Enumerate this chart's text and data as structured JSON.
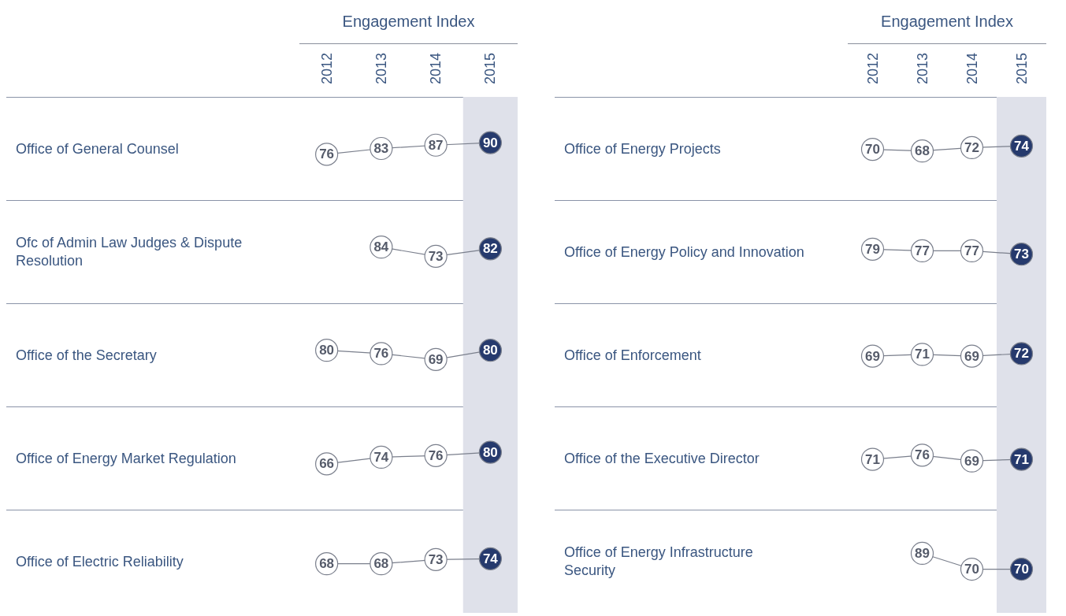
{
  "chart_data": [
    {
      "type": "line",
      "ylabel": "Office of General Counsel",
      "xlabel": "Engagement Index",
      "categories": [
        "2012",
        "2013",
        "2014",
        "2015"
      ],
      "tick_labels": "x",
      "data_labels": true,
      "marker": "circle",
      "bands": [
        {
          "axis": "x",
          "from": "2015",
          "to": "2015",
          "color": "#dfe1ea"
        }
      ],
      "series": [
        {
          "color": "#7a7f8c",
          "colors": [
            "#ffffff",
            "#ffffff",
            "#ffffff",
            "#263a6d"
          ],
          "values": [
            76,
            83,
            87,
            90
          ]
        }
      ]
    },
    {
      "type": "line",
      "ylabel": "Ofc of Admin Law Judges & Dispute Resolution",
      "categories": [
        "2012",
        "2013",
        "2014",
        "2015"
      ],
      "tick_labels": false,
      "data_labels": true,
      "marker": "circle",
      "bands": [
        {
          "axis": "x",
          "from": "2015",
          "to": "2015",
          "color": "#dfe1ea"
        }
      ],
      "series": [
        {
          "color": "#7a7f8c",
          "colors": [
            null,
            "#ffffff",
            "#ffffff",
            "#263a6d"
          ],
          "values": [
            null,
            84,
            73,
            82
          ]
        }
      ]
    },
    {
      "type": "line",
      "ylabel": "Office of the Secretary",
      "categories": [
        "2012",
        "2013",
        "2014",
        "2015"
      ],
      "tick_labels": false,
      "data_labels": true,
      "marker": "circle",
      "bands": [
        {
          "axis": "x",
          "from": "2015",
          "to": "2015",
          "color": "#dfe1ea"
        }
      ],
      "series": [
        {
          "color": "#7a7f8c",
          "colors": [
            "#ffffff",
            "#ffffff",
            "#ffffff",
            "#263a6d"
          ],
          "values": [
            80,
            76,
            69,
            80
          ]
        }
      ]
    },
    {
      "type": "line",
      "ylabel": "Office of Energy Market Regulation",
      "categories": [
        "2012",
        "2013",
        "2014",
        "2015"
      ],
      "tick_labels": false,
      "data_labels": true,
      "marker": "circle",
      "bands": [
        {
          "axis": "x",
          "from": "2015",
          "to": "2015",
          "color": "#dfe1ea"
        }
      ],
      "series": [
        {
          "color": "#7a7f8c",
          "colors": [
            "#ffffff",
            "#ffffff",
            "#ffffff",
            "#263a6d"
          ],
          "values": [
            66,
            74,
            76,
            80
          ]
        }
      ]
    },
    {
      "type": "line",
      "ylabel": "Office of Electric Reliability",
      "categories": [
        "2012",
        "2013",
        "2014",
        "2015"
      ],
      "tick_labels": false,
      "data_labels": true,
      "marker": "circle",
      "bands": [
        {
          "axis": "x",
          "from": "2015",
          "to": "2015",
          "color": "#dfe1ea"
        }
      ],
      "series": [
        {
          "color": "#7a7f8c",
          "colors": [
            "#ffffff",
            "#ffffff",
            "#ffffff",
            "#263a6d"
          ],
          "values": [
            68,
            68,
            73,
            74
          ]
        }
      ]
    },
    {
      "type": "line",
      "ylabel": "Office of Energy Projects",
      "xlabel": "Engagement Index",
      "categories": [
        "2012",
        "2013",
        "2014",
        "2015"
      ],
      "tick_labels": "x",
      "data_labels": true,
      "marker": "circle",
      "bands": [
        {
          "axis": "x",
          "from": "2015",
          "to": "2015",
          "color": "#dfe1ea"
        }
      ],
      "series": [
        {
          "color": "#7a7f8c",
          "colors": [
            "#ffffff",
            "#ffffff",
            "#ffffff",
            "#263a6d"
          ],
          "values": [
            70,
            68,
            72,
            74
          ]
        }
      ]
    },
    {
      "type": "line",
      "ylabel": "Office of Energy Policy and Innovation",
      "categories": [
        "2012",
        "2013",
        "2014",
        "2015"
      ],
      "tick_labels": false,
      "data_labels": true,
      "marker": "circle",
      "bands": [
        {
          "axis": "x",
          "from": "2015",
          "to": "2015",
          "color": "#dfe1ea"
        }
      ],
      "series": [
        {
          "color": "#7a7f8c",
          "colors": [
            "#ffffff",
            "#ffffff",
            "#ffffff",
            "#263a6d"
          ],
          "values": [
            79,
            77,
            77,
            73
          ]
        }
      ]
    },
    {
      "type": "line",
      "ylabel": "Office of Enforcement",
      "categories": [
        "2012",
        "2013",
        "2014",
        "2015"
      ],
      "tick_labels": false,
      "data_labels": true,
      "marker": "circle",
      "bands": [
        {
          "axis": "x",
          "from": "2015",
          "to": "2015",
          "color": "#dfe1ea"
        }
      ],
      "series": [
        {
          "color": "#7a7f8c",
          "colors": [
            "#ffffff",
            "#ffffff",
            "#ffffff",
            "#263a6d"
          ],
          "values": [
            69,
            71,
            69,
            72
          ]
        }
      ]
    },
    {
      "type": "line",
      "ylabel": "Office of the Executive Director",
      "categories": [
        "2012",
        "2013",
        "2014",
        "2015"
      ],
      "tick_labels": false,
      "data_labels": true,
      "marker": "circle",
      "bands": [
        {
          "axis": "x",
          "from": "2015",
          "to": "2015",
          "color": "#dfe1ea"
        }
      ],
      "series": [
        {
          "color": "#7a7f8c",
          "colors": [
            "#ffffff",
            "#ffffff",
            "#ffffff",
            "#263a6d"
          ],
          "values": [
            71,
            76,
            69,
            71
          ]
        }
      ]
    },
    {
      "type": "line",
      "ylabel": "Office of Energy Infrastructure Security",
      "categories": [
        "2012",
        "2013",
        "2014",
        "2015"
      ],
      "tick_labels": false,
      "data_labels": true,
      "marker": "circle",
      "bands": [
        {
          "axis": "x",
          "from": "2015",
          "to": "2015",
          "color": "#dfe1ea"
        }
      ],
      "series": [
        {
          "color": "#7a7f8c",
          "colors": [
            null,
            "#ffffff",
            "#ffffff",
            "#263a6d"
          ],
          "values": [
            null,
            89,
            70,
            70
          ]
        }
      ]
    }
  ]
}
